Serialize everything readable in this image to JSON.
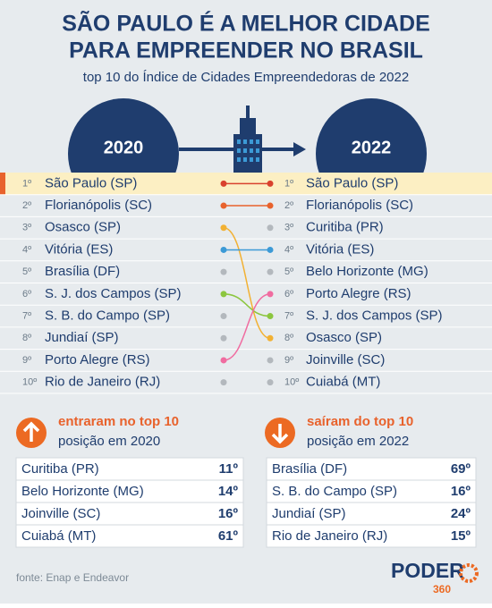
{
  "header": {
    "title_line1": "SÃO PAULO É A MELHOR CIDADE",
    "title_line2": "PARA EMPREENDER NO BRASIL",
    "subtitle": "top 10 do Índice de Cidades Empreendedoras de 2022"
  },
  "ranking": {
    "year_left": "2020",
    "year_right": "2022",
    "ranks": [
      "1º",
      "2º",
      "3º",
      "4º",
      "5º",
      "6º",
      "7º",
      "8º",
      "9º",
      "10º"
    ],
    "left": [
      {
        "name": "São Paulo (SP)",
        "color": "#d9412e"
      },
      {
        "name": "Florianópolis (SC)",
        "color": "#e8622c"
      },
      {
        "name": "Osasco (SP)",
        "color": "#f2b133"
      },
      {
        "name": "Vitória (ES)",
        "color": "#3c9ad6"
      },
      {
        "name": "Brasília (DF)",
        "color": "#b3b8bd"
      },
      {
        "name": "S. J. dos Campos (SP)",
        "color": "#8cc63f"
      },
      {
        "name": "S. B. do Campo (SP)",
        "color": "#b3b8bd"
      },
      {
        "name": "Jundiaí (SP)",
        "color": "#b3b8bd"
      },
      {
        "name": "Porto Alegre (RS)",
        "color": "#f06ca0"
      },
      {
        "name": "Rio de Janeiro (RJ)",
        "color": "#b3b8bd"
      }
    ],
    "right": [
      {
        "name": "São Paulo (SP)",
        "color": "#d9412e"
      },
      {
        "name": "Florianópolis (SC)",
        "color": "#e8622c"
      },
      {
        "name": "Curitiba (PR)",
        "color": "#b3b8bd"
      },
      {
        "name": "Vitória (ES)",
        "color": "#3c9ad6"
      },
      {
        "name": "Belo Horizonte (MG)",
        "color": "#b3b8bd"
      },
      {
        "name": "Porto Alegre (RS)",
        "color": "#f06ca0"
      },
      {
        "name": "S. J. dos Campos (SP)",
        "color": "#8cc63f"
      },
      {
        "name": "Osasco (SP)",
        "color": "#f2b133"
      },
      {
        "name": "Joinville (SC)",
        "color": "#b3b8bd"
      },
      {
        "name": "Cuiabá (MT)",
        "color": "#b3b8bd"
      }
    ]
  },
  "entered": {
    "title": "entraram no top 10",
    "subtitle": "posição em 2020",
    "rows": [
      [
        "Curitiba (PR)",
        "11º"
      ],
      [
        "Belo Horizonte (MG)",
        "14º"
      ],
      [
        "Joinville (SC)",
        "16º"
      ],
      [
        "Cuiabá (MT)",
        "61º"
      ]
    ]
  },
  "left_out": {
    "title": "saíram do top 10",
    "subtitle": "posição em 2022",
    "rows": [
      [
        "Brasília (DF)",
        "69º"
      ],
      [
        "S. B. do Campo (SP)",
        "16º"
      ],
      [
        "Jundiaí (SP)",
        "24º"
      ],
      [
        "Rio de Janeiro (RJ)",
        "15º"
      ]
    ]
  },
  "footer": {
    "source": "fonte: Enap e Endeavor",
    "logo": "PODER",
    "logo_sub": "360"
  }
}
